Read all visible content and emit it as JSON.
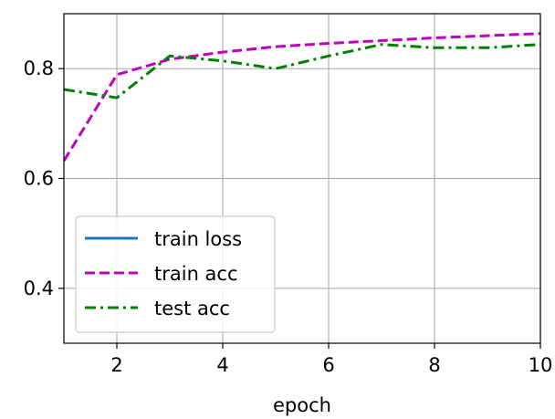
{
  "chart_data": {
    "type": "line",
    "title": "",
    "xlabel": "epoch",
    "ylabel": "",
    "xlim": [
      1,
      10
    ],
    "ylim": [
      0.3,
      0.9
    ],
    "xticks": [
      2,
      4,
      6,
      8,
      10
    ],
    "xtick_labels": [
      "2",
      "4",
      "6",
      "8",
      "10"
    ],
    "yticks": [
      0.4,
      0.6,
      0.8
    ],
    "ytick_labels": [
      "0.4",
      "0.6",
      "0.8"
    ],
    "grid": true,
    "legend_position": "lower-left",
    "series": [
      {
        "name": "train loss",
        "color": "#1f77b4",
        "linestyle": "solid",
        "x": [],
        "y": []
      },
      {
        "name": "train acc",
        "color": "#bf00bf",
        "linestyle": "dashed",
        "x": [
          1,
          2,
          3,
          4,
          5,
          6,
          7,
          8,
          9,
          10
        ],
        "y": [
          0.632,
          0.789,
          0.817,
          0.83,
          0.84,
          0.846,
          0.851,
          0.856,
          0.86,
          0.864
        ]
      },
      {
        "name": "test acc",
        "color": "#008000",
        "linestyle": "dashdot",
        "x": [
          1,
          2,
          3,
          4,
          5,
          6,
          7,
          8,
          9,
          10
        ],
        "y": [
          0.762,
          0.747,
          0.823,
          0.814,
          0.8,
          0.823,
          0.844,
          0.838,
          0.838,
          0.844
        ]
      }
    ]
  }
}
